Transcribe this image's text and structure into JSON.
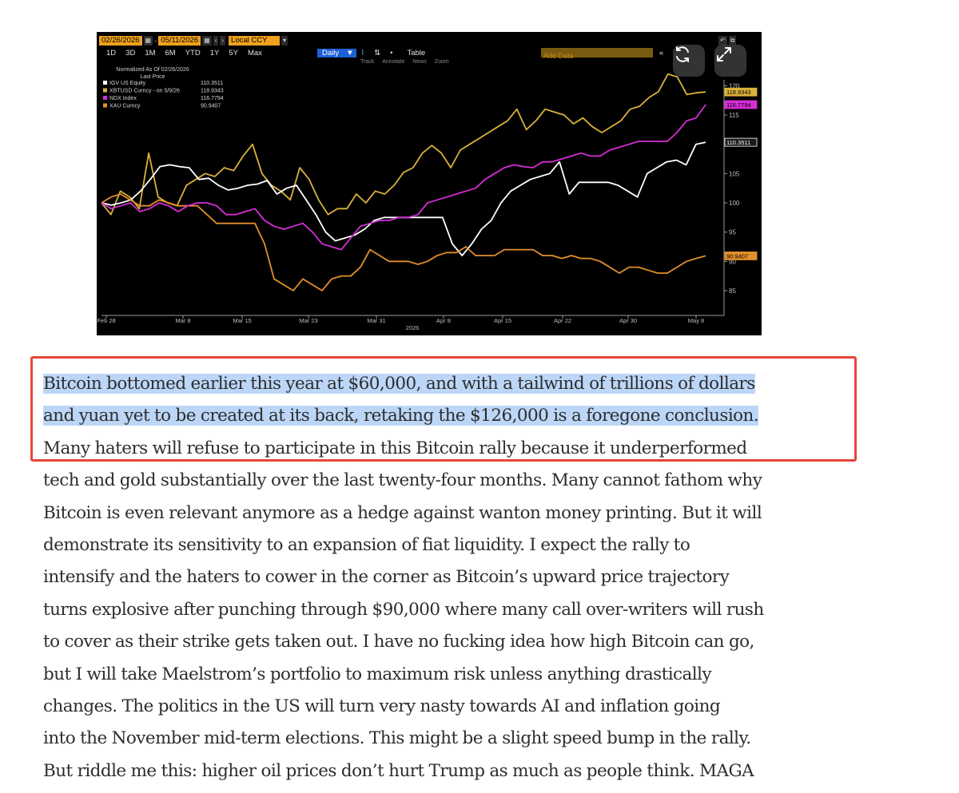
{
  "chart_embed": {
    "toolbar": {
      "start_date": "02/26/2026",
      "end_date": "05/11/2026",
      "currency": "Local CCY",
      "periods": [
        "1D",
        "3D",
        "1M",
        "6M",
        "YTD",
        "1Y",
        "5Y",
        "Max"
      ],
      "frequency": "Daily",
      "table_label": "Table",
      "add_data_label": "Add Data",
      "tools": [
        "Track",
        "Annotate",
        "News",
        "Zoom"
      ]
    },
    "overlay_buttons": [
      "refresh-icon",
      "expand-icon"
    ]
  },
  "chart_data": {
    "type": "line",
    "title": "",
    "legend_header": "Normalized As Of 02/26/2026",
    "legend_subheader": "Last Price",
    "xlabel": "2026",
    "x_ticks": [
      "Feb 28",
      "Mar 8",
      "Mar 15",
      "Mar 23",
      "Mar 31",
      "Apr 8",
      "Apr 15",
      "Apr 22",
      "Apr 30",
      "May 8"
    ],
    "y_ticks": [
      85,
      90,
      95,
      100,
      105,
      110,
      115,
      120
    ],
    "ylim": [
      82,
      123
    ],
    "series": [
      {
        "name": "IGV US Equity",
        "last_label": "110.3511",
        "color": "#ffffff",
        "values": [
          100,
          99.6,
          100,
          100.5,
          102,
          104,
          106.2,
          106.5,
          106.2,
          106,
          104,
          104.2,
          103,
          102.2,
          102.5,
          103,
          103.2,
          103.8,
          101.5,
          102.5,
          103,
          100.5,
          98,
          95,
          93.5,
          94,
          94.5,
          95.5,
          97,
          97.5,
          97.5,
          97.5,
          97.5,
          97.5,
          97.5,
          97.5,
          93,
          91,
          93,
          95.5,
          97,
          100,
          102,
          103,
          104,
          104.5,
          105,
          107,
          101.5,
          103.5,
          103.5,
          103.5,
          103.5,
          103,
          102,
          101,
          105,
          106,
          107,
          107.3,
          106.5,
          110,
          110.3511
        ]
      },
      {
        "name": "XBTUSD Curncy - on 5/9/26",
        "last_label": "118.9343",
        "color": "#d9b23a",
        "values": [
          100,
          98,
          102,
          101,
          99,
          108.5,
          101,
          100,
          99.5,
          103,
          104,
          105,
          104.5,
          106,
          105.5,
          108,
          110,
          105,
          103,
          102,
          100.5,
          106,
          104,
          100.5,
          98,
          99,
          99,
          101.5,
          100,
          102,
          101.5,
          103,
          105.2,
          106,
          108.5,
          109.8,
          108.5,
          106,
          109,
          110,
          111,
          112,
          113,
          114,
          116,
          112.5,
          114,
          116,
          115.5,
          115,
          113.5,
          114.5,
          113,
          112,
          113,
          114,
          116,
          116.5,
          118,
          119,
          122,
          121.5,
          118.5,
          118.8,
          118.9343
        ]
      },
      {
        "name": "NDX Index",
        "last_label": "116.7794",
        "color": "#d62dd6",
        "values": [
          100,
          99,
          99.5,
          100,
          98.5,
          99,
          100,
          99.5,
          98.5,
          99.5,
          100,
          100,
          99.5,
          98,
          98,
          98.5,
          99,
          97,
          96,
          95.5,
          96,
          96.5,
          95,
          93,
          92.5,
          92,
          94,
          96,
          96.5,
          97,
          97,
          97.5,
          97.5,
          98,
          100,
          100.5,
          101,
          101.5,
          102,
          102.5,
          104,
          105,
          106,
          106.5,
          106.2,
          106,
          107,
          107,
          107.5,
          108,
          108.5,
          108,
          108,
          109,
          109.5,
          110,
          110.5,
          110.5,
          110.5,
          110.5,
          112,
          114,
          114.5,
          116.7794
        ]
      },
      {
        "name": "XAU Curncy",
        "last_label": "90.9407",
        "color": "#e2902c",
        "values": [
          100,
          101,
          101.5,
          100.5,
          99.5,
          99.5,
          100.5,
          100,
          99.5,
          99.5,
          99.5,
          98,
          96.5,
          96.5,
          96.5,
          96.5,
          96.5,
          93,
          87,
          86,
          85,
          87,
          86,
          85,
          87,
          87.5,
          87.5,
          89,
          92,
          91,
          90,
          90,
          90,
          89.5,
          90,
          91,
          91.5,
          91.5,
          92.5,
          91,
          91,
          91,
          92,
          92,
          92,
          92,
          91,
          91,
          90.5,
          91,
          90.5,
          90.5,
          90,
          89,
          88,
          89,
          89,
          88.5,
          88,
          88,
          89,
          90,
          90.5,
          90.9407
        ]
      }
    ]
  },
  "article": {
    "lines": [
      "Bitcoin bottomed earlier this year at $60,000, and with a tailwind of trillions of dollars",
      "and yuan yet to be created at its back, retaking the $126,000 is a foregone conclusion.",
      "Many haters will refuse to participate in this Bitcoin rally because it underperformed",
      "tech and gold substantially over the last twenty-four months. Many cannot fathom why",
      "Bitcoin is even relevant anymore as a hedge against wanton money printing. But it will",
      "demonstrate its sensitivity to an expansion of fiat liquidity. I expect the rally to",
      "intensify and the haters to cower in the corner as Bitcoin’s upward price trajectory",
      "turns explosive after punching through $90,000 where many call over-writers will rush",
      "to cover as their strike gets taken out. I have no fucking idea how high Bitcoin can go,",
      "but I will take Maelstrom’s portfolio to maximum risk unless anything drastically",
      "changes. The politics in the US will turn very nasty towards AI and inflation going",
      "into the November mid-term elections. This might be a slight speed bump in the rally.",
      "But riddle me this: higher oil prices don’t hurt Trump as much as people think. MAGA"
    ],
    "highlighted_line_count": 2
  }
}
